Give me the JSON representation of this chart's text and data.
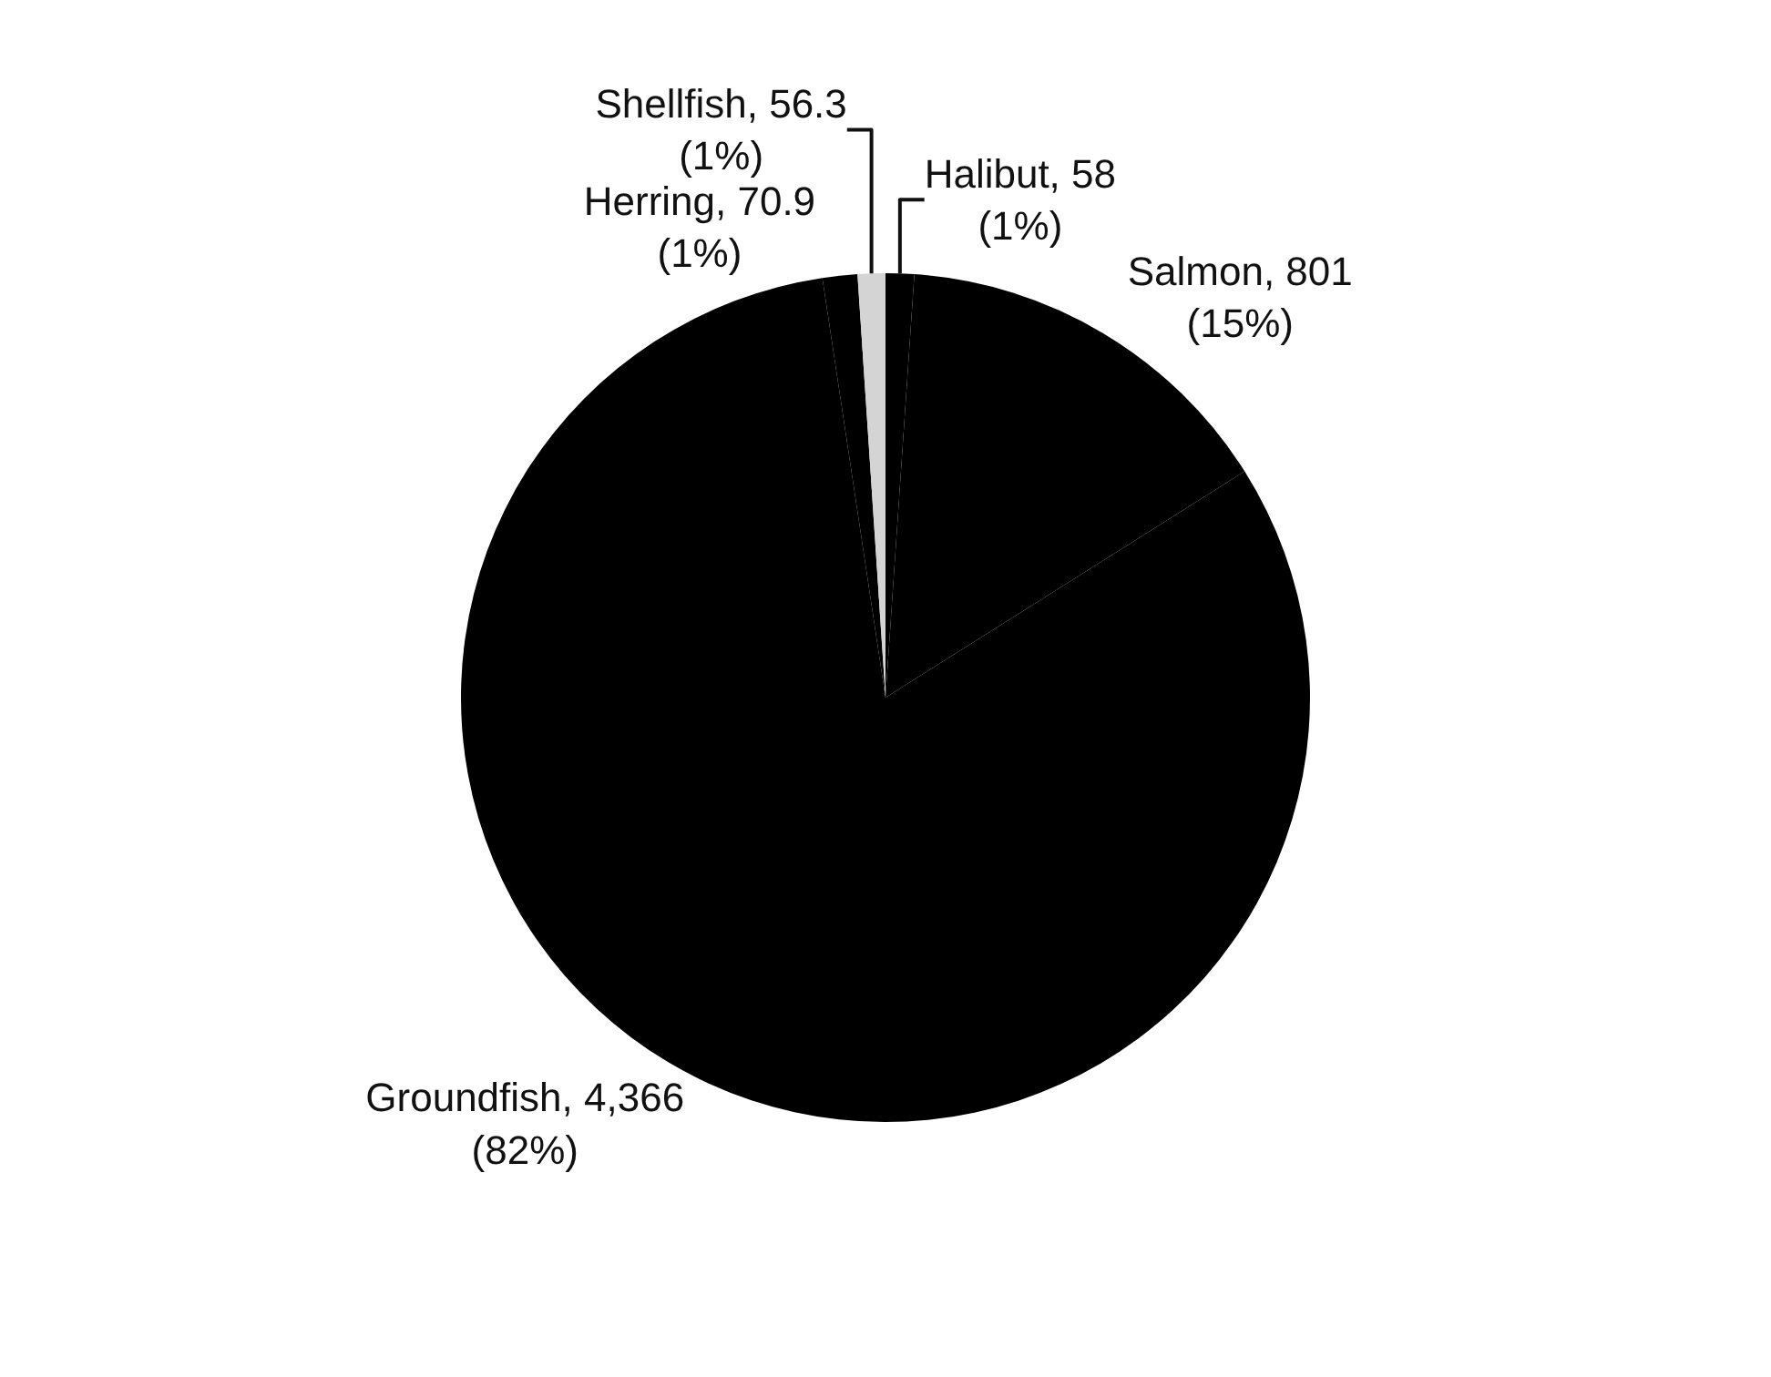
{
  "chart_data": {
    "type": "pie",
    "categories": [
      "Halibut",
      "Salmon",
      "Groundfish",
      "Herring",
      "Shellfish"
    ],
    "values": [
      58,
      801,
      4366,
      70.9,
      56.3
    ],
    "colors": [
      "#000000",
      "#000000",
      "#000000",
      "#000000",
      "#d4d4d4"
    ],
    "value_labels": [
      "58 (1%)",
      "801 (15%)",
      "4,366 (82%)",
      "70.9 (1%)",
      "56.3 (1%)"
    ],
    "legend": false
  }
}
